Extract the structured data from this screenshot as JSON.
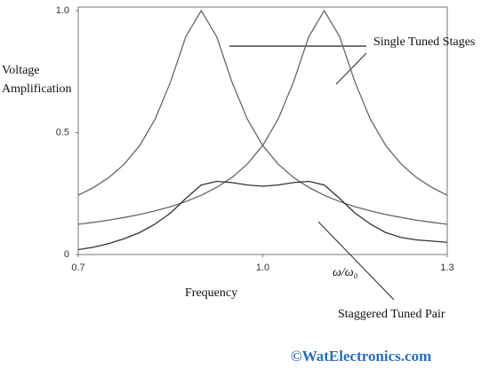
{
  "chart_data": {
    "type": "line",
    "ylabel": [
      "Voltage",
      "Amplification"
    ],
    "xlabel": "Frequency",
    "x_annotation": "ω/ω₀",
    "annotations": [
      "Single Tuned Stages",
      "Staggered Tuned Pair"
    ],
    "watermark": "©WatElectronics.com",
    "x": [
      0.7,
      0.725,
      0.75,
      0.775,
      0.8,
      0.825,
      0.85,
      0.875,
      0.9,
      0.925,
      0.95,
      0.975,
      1.0,
      1.025,
      1.05,
      1.075,
      1.1,
      1.125,
      1.15,
      1.175,
      1.2,
      1.225,
      1.25,
      1.275,
      1.3
    ],
    "series": [
      {
        "color": "#666666",
        "values": [
          0.243,
          0.275,
          0.316,
          0.371,
          0.447,
          0.555,
          0.707,
          0.894,
          1.0,
          0.894,
          0.707,
          0.555,
          0.447,
          0.371,
          0.316,
          0.275,
          0.243,
          0.217,
          0.196,
          0.179,
          0.164,
          0.152,
          0.141,
          0.132,
          0.124
        ]
      },
      {
        "color": "#666666",
        "values": [
          0.124,
          0.132,
          0.141,
          0.152,
          0.164,
          0.179,
          0.196,
          0.217,
          0.243,
          0.275,
          0.316,
          0.371,
          0.447,
          0.555,
          0.707,
          0.894,
          1.0,
          0.894,
          0.707,
          0.555,
          0.447,
          0.371,
          0.316,
          0.275,
          0.243
        ]
      },
      {
        "color": "#333333",
        "values": [
          0.02,
          0.03,
          0.045,
          0.065,
          0.09,
          0.125,
          0.17,
          0.23,
          0.285,
          0.3,
          0.295,
          0.285,
          0.28,
          0.285,
          0.295,
          0.3,
          0.285,
          0.23,
          0.17,
          0.125,
          0.09,
          0.07,
          0.06,
          0.055,
          0.05
        ]
      }
    ],
    "xlim": [
      0.7,
      1.3
    ],
    "xticks": [
      0.7,
      {
        "value": 1,
        "label": "1.0"
      },
      1.3
    ],
    "ylim": [
      0,
      1
    ],
    "yticks": [
      0,
      0.5,
      {
        "value": 1,
        "label": "1.0"
      }
    ]
  }
}
